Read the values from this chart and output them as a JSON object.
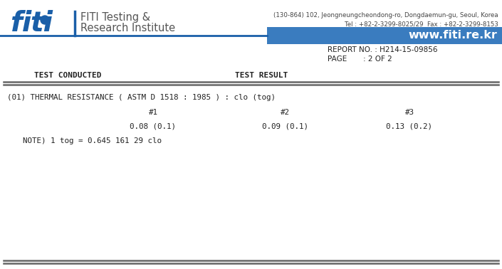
{
  "bg_color": "#ffffff",
  "header_address": "(130-864) 102, Jeongneungcheondong-ro, Dongdaemun-gu, Seoul, Korea",
  "header_tel": "Tel : +82-2-3299-8025/29  Fax : +82-2-3299-8153",
  "header_website": "www.fiti.re.kr",
  "report_no": "REPORT NO. : H214-15-09856",
  "page_info": "PAGE       : 2 OF 2",
  "col1_header": "TEST CONDUCTED",
  "col2_header": "TEST RESULT",
  "test_title": "(01) THERMAL RESISTANCE ( ASTM D 1518 : 1985 ) : clo (tog)",
  "sample_labels": [
    "#1",
    "#2",
    "#3"
  ],
  "sample_values": [
    "0.08 (0.1)",
    "0.09 (0.1)",
    "0.13 (0.2)"
  ],
  "note": "NOTE) 1 tog = 0.645 161 29 clo",
  "separator_color": "#1a5fa8",
  "text_dark": "#444444",
  "text_black": "#222222",
  "blue_bar_color": "#3a7cbf",
  "white_text": "#ffffff",
  "line_color": "#666666",
  "logo_blue": "#1a5fa8",
  "company_text_color": "#555555"
}
